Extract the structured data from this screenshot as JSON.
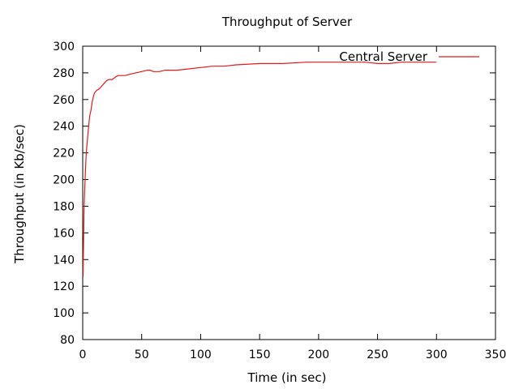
{
  "chart_data": {
    "type": "line",
    "title": "Throughput of Server",
    "xlabel": "Time (in sec)",
    "ylabel": "Throughput (in Kb/sec)",
    "xlim": [
      0,
      350
    ],
    "ylim": [
      80,
      300
    ],
    "xticks": [
      0,
      50,
      100,
      150,
      200,
      250,
      300,
      350
    ],
    "yticks": [
      80,
      100,
      120,
      140,
      160,
      180,
      200,
      220,
      240,
      260,
      280,
      300
    ],
    "grid": false,
    "legend_position": "top-right",
    "colors": {
      "series": "#e41a1c"
    },
    "series": [
      {
        "name": "Central Server",
        "x": [
          0.3,
          0.8,
          1.2,
          1.8,
          2.5,
          3,
          4,
          5,
          6,
          7,
          8,
          9,
          10,
          11,
          12,
          14,
          16,
          18,
          20,
          22,
          25,
          28,
          30,
          33,
          36,
          40,
          45,
          50,
          55,
          57,
          60,
          65,
          70,
          75,
          80,
          90,
          100,
          110,
          120,
          130,
          150,
          170,
          190,
          200,
          210,
          220,
          230,
          240,
          250,
          260,
          270,
          280,
          290,
          300
        ],
        "y": [
          127,
          160,
          180,
          195,
          210,
          220,
          230,
          240,
          248,
          252,
          258,
          262,
          265,
          266,
          267,
          268,
          270,
          272,
          274,
          275,
          275,
          277,
          278,
          278,
          278,
          279,
          280,
          281,
          282,
          282,
          281,
          281,
          282,
          282,
          282,
          283,
          284,
          285,
          285,
          286,
          287,
          287,
          288,
          288,
          288,
          288,
          288,
          288,
          287,
          287,
          288,
          288,
          288,
          288
        ]
      }
    ]
  }
}
